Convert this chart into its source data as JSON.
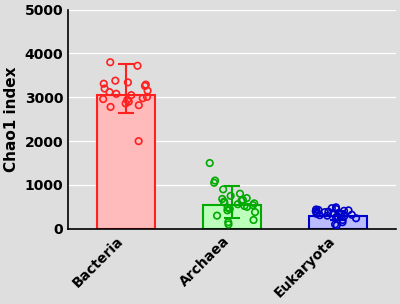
{
  "categories": [
    "Bacteria",
    "Archaea",
    "Eukaryota"
  ],
  "bar_means": [
    3050,
    550,
    300
  ],
  "bar_errors_upper": [
    700,
    430,
    110
  ],
  "bar_errors_lower": [
    400,
    300,
    100
  ],
  "bar_face_colors": [
    "#FFBBBB",
    "#BBFFBB",
    "#BBBBFF"
  ],
  "bar_edge_colors": [
    "#FF2020",
    "#00AA00",
    "#0000CC"
  ],
  "dot_colors": [
    "#FF2020",
    "#00AA00",
    "#0000CC"
  ],
  "bacteria_dots": [
    3800,
    3720,
    3380,
    3340,
    3310,
    3290,
    3260,
    3200,
    3150,
    3120,
    3080,
    3050,
    3010,
    2980,
    2960,
    2940,
    2900,
    2860,
    2820,
    2780,
    2000
  ],
  "archaea_dots": [
    1500,
    1100,
    1050,
    900,
    800,
    750,
    700,
    680,
    660,
    640,
    620,
    600,
    580,
    560,
    540,
    520,
    500,
    480,
    450,
    420,
    380,
    300,
    200,
    150,
    100
  ],
  "eukaryota_dots": [
    490,
    470,
    450,
    440,
    430,
    420,
    410,
    400,
    390,
    380,
    370,
    360,
    350,
    340,
    330,
    320,
    310,
    300,
    290,
    280,
    270,
    260,
    240,
    200,
    150,
    100,
    80
  ],
  "ylabel": "Chao1 index",
  "ylim": [
    0,
    5000
  ],
  "yticks": [
    0,
    1000,
    2000,
    3000,
    4000,
    5000
  ],
  "background_color": "#DEDEDE",
  "fig_background": "#DEDEDE",
  "ylabel_fontsize": 11,
  "tick_fontsize": 10,
  "bar_width": 0.55
}
